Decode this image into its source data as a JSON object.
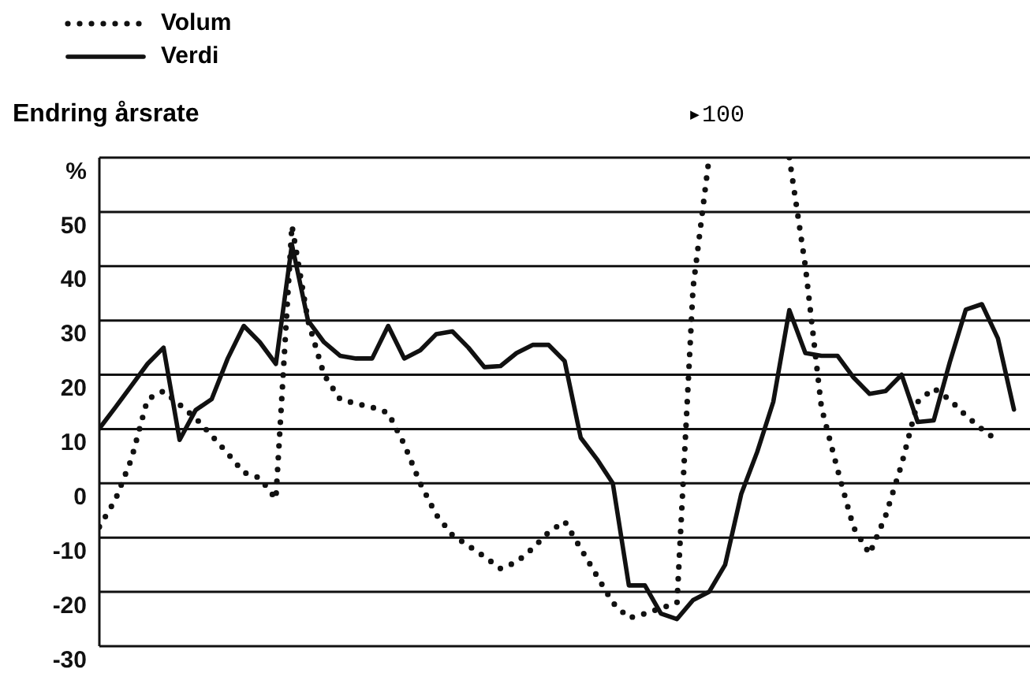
{
  "chart_data": {
    "type": "line",
    "ylabel": "Endring årsrate",
    "annotations": [
      "▸100"
    ],
    "categories": [
      null,
      null,
      null,
      null,
      null,
      null,
      null,
      null,
      null,
      null,
      null,
      null,
      null,
      null,
      null,
      null,
      null,
      null,
      null,
      null,
      null,
      null,
      null,
      null,
      null,
      null,
      null,
      null,
      null,
      null,
      null,
      null,
      null,
      null,
      null,
      null,
      null,
      null,
      null,
      null,
      null,
      null,
      null,
      null,
      null,
      null,
      null,
      null,
      null,
      null,
      null,
      null,
      null,
      null,
      null,
      null,
      null,
      null,
      null
    ],
    "series": [
      {
        "name": "Volum",
        "color": "#111111",
        "line_style": "dotted",
        "values": [
          -8,
          -3,
          4.5,
          15.5,
          17,
          14.5,
          12,
          8.8,
          5.5,
          2,
          1,
          -2.9,
          47.5,
          30,
          20,
          15.5,
          14.7,
          14,
          13,
          7.2,
          0,
          -5.8,
          -9.5,
          -11.5,
          -13.5,
          -15.7,
          -14.5,
          -12,
          -9,
          -7,
          -12,
          -17,
          -22,
          -24.8,
          -24,
          -23,
          -22,
          36,
          60,
          null,
          null,
          null,
          null,
          60,
          40,
          14,
          2.6,
          -8.1,
          -13,
          -6,
          3.5,
          15,
          17.5,
          15.4,
          12.5,
          10,
          7.8,
          null,
          null
        ]
      },
      {
        "name": "Verdi",
        "color": "#111111",
        "line_style": "solid",
        "values": [
          10.1,
          14,
          18,
          22,
          25,
          8,
          13.5,
          15.5,
          23,
          29,
          26,
          22,
          44,
          30,
          26,
          23.5,
          23,
          23,
          29,
          23,
          24.5,
          27.5,
          28,
          25,
          21.4,
          21.6,
          24,
          25.5,
          25.5,
          22.5,
          8.4,
          4.5,
          0,
          -18.8,
          -18.8,
          -24,
          -25,
          -21.5,
          -20,
          -15,
          -2,
          5.8,
          15,
          31.9,
          24,
          23.5,
          23.5,
          19.5,
          16.5,
          17,
          20,
          11.3,
          11.6,
          22.3,
          32,
          33,
          26.7,
          13.6,
          null
        ]
      }
    ],
    "ylim": [
      -30,
      60
    ],
    "yticks": [
      -30,
      -20,
      -10,
      0,
      10,
      20,
      30,
      40,
      50,
      {
        "value": 60,
        "label": "%"
      }
    ],
    "grid": "y",
    "legend": "top left",
    "tick_labels": "y"
  }
}
